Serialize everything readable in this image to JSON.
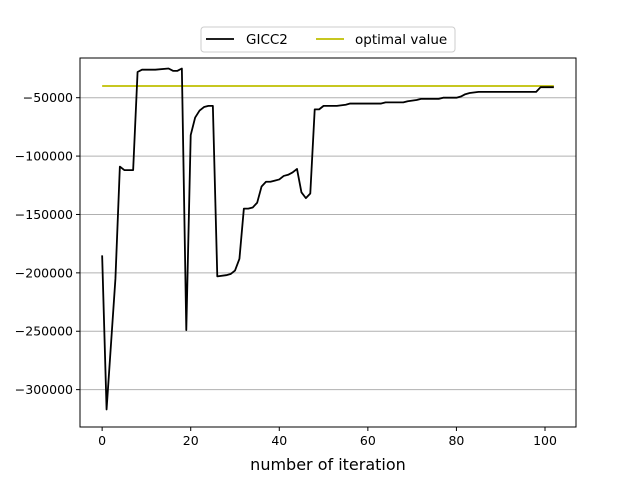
{
  "chart_data": {
    "type": "line",
    "title": "",
    "xlabel": "number of iteration",
    "ylabel": "",
    "xlim": [
      -5,
      107
    ],
    "ylim": [
      -332000,
      -16000
    ],
    "x_ticks": [
      0,
      20,
      40,
      60,
      80,
      100
    ],
    "y_ticks": [
      -300000,
      -250000,
      -200000,
      -150000,
      -100000,
      -50000
    ],
    "x_tick_labels": [
      "0",
      "20",
      "40",
      "60",
      "80",
      "100"
    ],
    "y_tick_labels": [
      "−300000",
      "−250000",
      "−200000",
      "−150000",
      "−100000",
      "−50000"
    ],
    "grid": "horizontal",
    "legend_position": "top-center",
    "series": [
      {
        "name": "GICC2",
        "color": "#000000",
        "x": [
          0,
          1,
          3,
          4,
          5,
          7,
          8,
          9,
          12,
          15,
          16,
          17,
          18,
          19,
          20,
          21,
          22,
          23,
          24,
          25,
          26,
          28,
          29,
          30,
          31,
          32,
          33,
          34,
          35,
          36,
          37,
          38,
          39,
          40,
          41,
          42,
          43,
          44,
          45,
          46,
          47,
          48,
          49,
          50,
          53,
          55,
          56,
          60,
          63,
          64,
          68,
          69,
          71,
          72,
          76,
          77,
          80,
          81,
          82,
          83,
          85,
          88,
          92,
          96,
          98,
          99,
          100,
          101,
          102
        ],
        "y": [
          -185000,
          -317000,
          -205000,
          -109000,
          -112000,
          -112000,
          -28000,
          -26000,
          -26000,
          -25000,
          -27000,
          -27000,
          -25000,
          -249000,
          -82000,
          -67000,
          -61000,
          -58000,
          -57000,
          -57000,
          -203000,
          -202000,
          -201000,
          -198000,
          -188000,
          -145000,
          -145000,
          -144000,
          -140000,
          -126000,
          -122000,
          -122000,
          -121000,
          -120000,
          -117000,
          -116000,
          -114000,
          -111000,
          -131000,
          -136000,
          -132000,
          -60000,
          -60000,
          -57000,
          -57000,
          -56000,
          -55000,
          -55000,
          -55000,
          -54000,
          -54000,
          -53000,
          -52000,
          -51000,
          -51000,
          -50000,
          -50000,
          -49000,
          -47000,
          -46000,
          -45000,
          -45000,
          -45000,
          -45000,
          -45000,
          -41000,
          -41000,
          -41000,
          -41000
        ]
      },
      {
        "name": "optimal value",
        "color": "#bfbf00",
        "x": [
          0,
          102
        ],
        "y": [
          -40000,
          -40000
        ]
      }
    ]
  }
}
